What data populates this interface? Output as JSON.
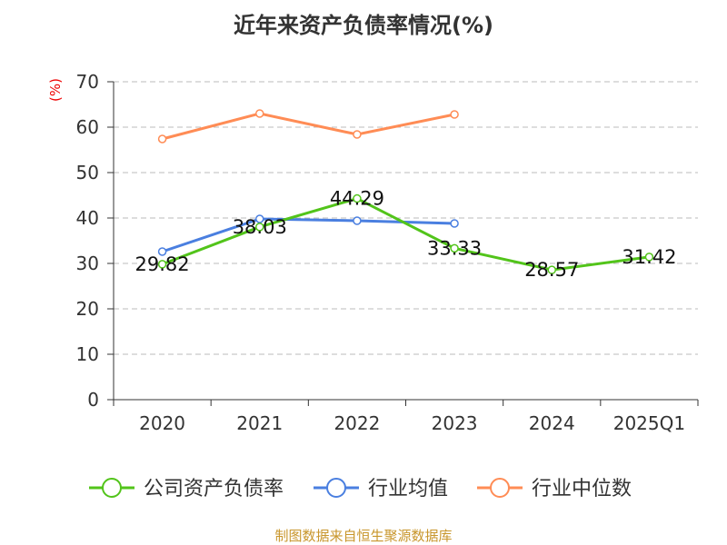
{
  "chart_data": {
    "type": "line",
    "title": "近年来资产负债率情况(%)",
    "ylabel": "(%)",
    "categories": [
      "2020",
      "2021",
      "2022",
      "2023",
      "2024",
      "2025Q1"
    ],
    "ylim": [
      0,
      70
    ],
    "yticks": [
      0,
      10,
      20,
      30,
      40,
      50,
      60,
      70
    ],
    "grid": true,
    "legend_position": "bottom",
    "series": [
      {
        "name": "公司资产负债率",
        "color": "#52c41a",
        "values": [
          29.82,
          38.03,
          44.29,
          33.33,
          28.57,
          31.42
        ],
        "labels": [
          "29.82",
          "38.03",
          "44.29",
          "33.33",
          "28.57",
          "31.42"
        ]
      },
      {
        "name": "行业均值",
        "color": "#4a7fe0",
        "values": [
          32.6,
          39.8,
          39.4,
          38.8,
          null,
          null
        ]
      },
      {
        "name": "行业中位数",
        "color": "#ff8c55",
        "values": [
          57.4,
          63.0,
          58.4,
          62.8,
          null,
          null
        ]
      }
    ]
  },
  "footer": "制图数据来自恒生聚源数据库"
}
